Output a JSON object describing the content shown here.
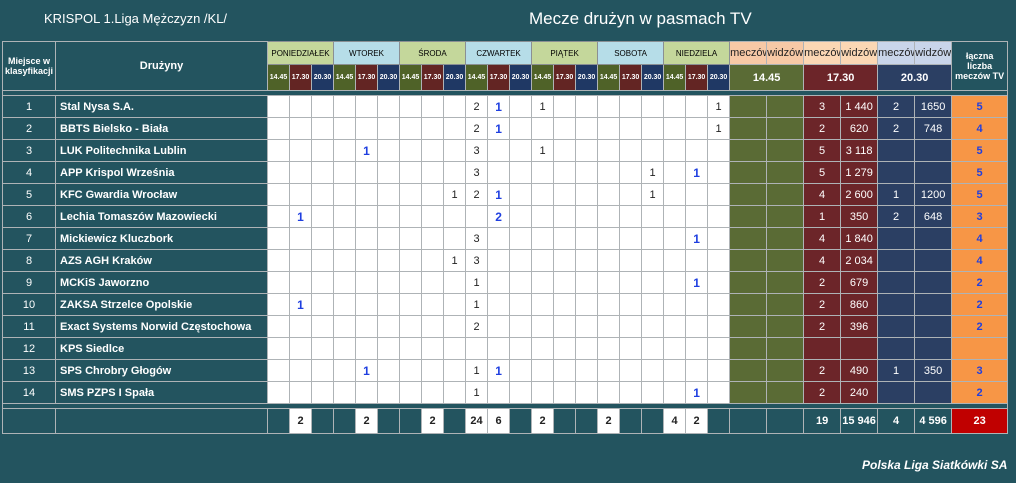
{
  "header": {
    "league": "KRISPOL 1.Liga Mężczyzn /KL/",
    "title": "Mecze drużyn w pasmach TV"
  },
  "columns": {
    "place_label": "Miejsce w klasyfikacji",
    "teams_label": "Drużyny",
    "days": [
      "PONIEDZIAŁEK",
      "WTOREK",
      "ŚRODA",
      "CZWARTEK",
      "PIĄTEK",
      "SOBOTA",
      "NIEDZIELA"
    ],
    "times": [
      "14.45",
      "17.30",
      "20.30"
    ],
    "matches": "meczów",
    "viewers": "widzów",
    "total_label": "łączna liczba meczów TV"
  },
  "rows": [
    {
      "place": "1",
      "team": "Stal Nysa S.A.",
      "cells": [
        "",
        "",
        "",
        "",
        "",
        "",
        "",
        "",
        "",
        "2",
        "1",
        "",
        "1",
        "",
        "",
        "",
        "",
        "",
        "",
        "",
        "1"
      ],
      "c1445": "",
      "c1730": "3",
      "v1730": "1 440",
      "c2030": "2",
      "v2030": "1650",
      "total": "5"
    },
    {
      "place": "2",
      "team": "BBTS Bielsko - Biała",
      "cells": [
        "",
        "",
        "",
        "",
        "",
        "",
        "",
        "",
        "",
        "2",
        "1",
        "",
        "",
        "",
        "",
        "",
        "",
        "",
        "",
        "",
        "1"
      ],
      "c1445": "",
      "c1730": "2",
      "v1730": "620",
      "c2030": "2",
      "v2030": "748",
      "total": "4"
    },
    {
      "place": "3",
      "team": "LUK Politechnika Lublin",
      "cells": [
        "",
        "",
        "",
        "",
        "1",
        "",
        "",
        "",
        "",
        "3",
        "",
        "",
        "1",
        "",
        "",
        "",
        "",
        "",
        "",
        "",
        ""
      ],
      "c1445": "",
      "c1730": "5",
      "v1730": "3 118",
      "c2030": "",
      "v2030": "",
      "total": "5"
    },
    {
      "place": "4",
      "team": "APP Krispol Września",
      "cells": [
        "",
        "",
        "",
        "",
        "",
        "",
        "",
        "",
        "",
        "3",
        "",
        "",
        "",
        "",
        "",
        "",
        "",
        "1",
        "",
        "1",
        ""
      ],
      "c1445": "",
      "c1730": "5",
      "v1730": "1 279",
      "c2030": "",
      "v2030": "",
      "total": "5"
    },
    {
      "place": "5",
      "team": "KFC Gwardia Wrocław",
      "cells": [
        "",
        "",
        "",
        "",
        "",
        "",
        "",
        "",
        "1",
        "2",
        "1",
        "",
        "",
        "",
        "",
        "",
        "",
        "1",
        "",
        "",
        ""
      ],
      "c1445": "",
      "c1730": "4",
      "v1730": "2 600",
      "c2030": "1",
      "v2030": "1200",
      "total": "5"
    },
    {
      "place": "6",
      "team": "Lechia Tomaszów Mazowiecki",
      "cells": [
        "",
        "1",
        "",
        "",
        "",
        "",
        "",
        "",
        "",
        "",
        "2",
        "",
        "",
        "",
        "",
        "",
        "",
        "",
        "",
        "",
        ""
      ],
      "c1445": "",
      "c1730": "1",
      "v1730": "350",
      "c2030": "2",
      "v2030": "648",
      "total": "3"
    },
    {
      "place": "7",
      "team": "Mickiewicz Kluczbork",
      "cells": [
        "",
        "",
        "",
        "",
        "",
        "",
        "",
        "",
        "",
        "3",
        "",
        "",
        "",
        "",
        "",
        "",
        "",
        "",
        "",
        "1",
        ""
      ],
      "c1445": "",
      "c1730": "4",
      "v1730": "1 840",
      "c2030": "",
      "v2030": "",
      "total": "4"
    },
    {
      "place": "8",
      "team": "AZS AGH Kraków",
      "cells": [
        "",
        "",
        "",
        "",
        "",
        "",
        "",
        "",
        "1",
        "3",
        "",
        "",
        "",
        "",
        "",
        "",
        "",
        "",
        "",
        "",
        ""
      ],
      "c1445": "",
      "c1730": "4",
      "v1730": "2 034",
      "c2030": "",
      "v2030": "",
      "total": "4"
    },
    {
      "place": "9",
      "team": "MCKiS Jaworzno",
      "cells": [
        "",
        "",
        "",
        "",
        "",
        "",
        "",
        "",
        "",
        "1",
        "",
        "",
        "",
        "",
        "",
        "",
        "",
        "",
        "",
        "1",
        ""
      ],
      "c1445": "",
      "c1730": "2",
      "v1730": "679",
      "c2030": "",
      "v2030": "",
      "total": "2"
    },
    {
      "place": "10",
      "team": "ZAKSA Strzelce Opolskie",
      "cells": [
        "",
        "1",
        "",
        "",
        "",
        "",
        "",
        "",
        "",
        "1",
        "",
        "",
        "",
        "",
        "",
        "",
        "",
        "",
        "",
        "",
        ""
      ],
      "c1445": "",
      "c1730": "2",
      "v1730": "860",
      "c2030": "",
      "v2030": "",
      "total": "2"
    },
    {
      "place": "11",
      "team": "Exact Systems Norwid Częstochowa",
      "cells": [
        "",
        "",
        "",
        "",
        "",
        "",
        "",
        "",
        "",
        "2",
        "",
        "",
        "",
        "",
        "",
        "",
        "",
        "",
        "",
        "",
        ""
      ],
      "c1445": "",
      "c1730": "2",
      "v1730": "396",
      "c2030": "",
      "v2030": "",
      "total": "2"
    },
    {
      "place": "12",
      "team": "KPS Siedlce",
      "cells": [
        "",
        "",
        "",
        "",
        "",
        "",
        "",
        "",
        "",
        "",
        "",
        "",
        "",
        "",
        "",
        "",
        "",
        "",
        "",
        "",
        ""
      ],
      "c1445": "",
      "c1730": "",
      "v1730": "",
      "c2030": "",
      "v2030": "",
      "total": ""
    },
    {
      "place": "13",
      "team": "SPS Chrobry Głogów",
      "cells": [
        "",
        "",
        "",
        "",
        "1",
        "",
        "",
        "",
        "",
        "1",
        "1",
        "",
        "",
        "",
        "",
        "",
        "",
        "",
        "",
        "",
        ""
      ],
      "c1445": "",
      "c1730": "2",
      "v1730": "490",
      "c2030": "1",
      "v2030": "350",
      "total": "3"
    },
    {
      "place": "14",
      "team": "SMS PZPS I Spała",
      "cells": [
        "",
        "",
        "",
        "",
        "",
        "",
        "",
        "",
        "",
        "1",
        "",
        "",
        "",
        "",
        "",
        "",
        "",
        "",
        "",
        "1",
        ""
      ],
      "c1445": "",
      "c1730": "2",
      "v1730": "240",
      "c2030": "",
      "v2030": "",
      "total": "2"
    }
  ],
  "summary": {
    "cells": [
      "",
      "2",
      "",
      "",
      "2",
      "",
      "",
      "2",
      "",
      "24",
      "6",
      "",
      "2",
      "",
      "",
      "2",
      "",
      "",
      "4",
      "2",
      ""
    ],
    "c1445": "",
    "v1445": "",
    "c1730": "19",
    "v1730": "15 946",
    "c2030": "4",
    "v2030": "4 596",
    "total": "23"
  },
  "footer": "Polska Liga Siatkówki SA",
  "colors": {
    "background": "#23545f",
    "slot_1445": "#5a6b35",
    "slot_1730": "#6c2529",
    "slot_2030": "#2b3f63",
    "total": "#f79646",
    "highlight_value": "#1f3fe0"
  }
}
